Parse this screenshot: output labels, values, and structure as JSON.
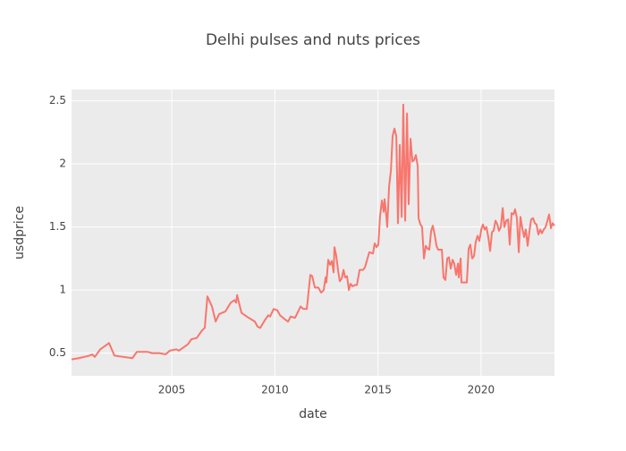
{
  "chart_data": {
    "type": "line",
    "title": "Delhi pulses and nuts prices",
    "x_label": "date",
    "y_label": "usdprice",
    "xlim": [
      2000.14,
      2023.56
    ],
    "xticks": [
      2005,
      2010,
      2015,
      2020
    ],
    "ylim": [
      0.32,
      2.59
    ],
    "yticks": [
      0.5,
      1,
      1.5,
      2,
      2.5
    ],
    "grid": true,
    "series": [
      {
        "name": "usdprice",
        "color": "#F8766D",
        "x": [
          2000.14,
          2000.49,
          2001.01,
          2001.14,
          2001.27,
          2001.53,
          2001.79,
          2001.96,
          2002.22,
          2003.09,
          2003.31,
          2003.83,
          2004.05,
          2004.39,
          2004.7,
          2004.91,
          2005.22,
          2005.35,
          2005.78,
          2005.95,
          2006.21,
          2006.47,
          2006.6,
          2006.73,
          2006.95,
          2007.13,
          2007.3,
          2007.6,
          2007.86,
          2008.04,
          2008.12,
          2008.17,
          2008.38,
          2008.73,
          2009.03,
          2009.16,
          2009.29,
          2009.51,
          2009.68,
          2009.77,
          2009.94,
          2010.12,
          2010.25,
          2010.55,
          2010.64,
          2010.77,
          2010.98,
          2011.25,
          2011.38,
          2011.55,
          2011.72,
          2011.81,
          2011.94,
          2012.11,
          2012.24,
          2012.37,
          2012.46,
          2012.5,
          2012.59,
          2012.68,
          2012.76,
          2012.85,
          2012.89,
          2012.98,
          2013.07,
          2013.15,
          2013.24,
          2013.33,
          2013.41,
          2013.5,
          2013.59,
          2013.67,
          2013.76,
          2013.89,
          2013.98,
          2014.11,
          2014.28,
          2014.37,
          2014.58,
          2014.76,
          2014.84,
          2014.93,
          2015.02,
          2015.1,
          2015.19,
          2015.28,
          2015.32,
          2015.37,
          2015.45,
          2015.54,
          2015.63,
          2015.71,
          2015.8,
          2015.89,
          2015.97,
          2016.06,
          2016.15,
          2016.23,
          2016.32,
          2016.41,
          2016.49,
          2016.58,
          2016.67,
          2016.75,
          2016.84,
          2016.93,
          2016.97,
          2017.06,
          2017.14,
          2017.23,
          2017.32,
          2017.4,
          2017.49,
          2017.58,
          2017.66,
          2017.75,
          2017.84,
          2017.92,
          2018.1,
          2018.18,
          2018.27,
          2018.36,
          2018.44,
          2018.53,
          2018.62,
          2018.7,
          2018.79,
          2018.88,
          2018.92,
          2019.01,
          2019.05,
          2019.14,
          2019.31,
          2019.4,
          2019.48,
          2019.57,
          2019.66,
          2019.74,
          2019.83,
          2019.92,
          2020.01,
          2020.09,
          2020.18,
          2020.26,
          2020.35,
          2020.44,
          2020.53,
          2020.61,
          2020.7,
          2020.79,
          2020.87,
          2020.96,
          2021.05,
          2021.13,
          2021.22,
          2021.31,
          2021.39,
          2021.48,
          2021.57,
          2021.65,
          2021.74,
          2021.83,
          2021.91,
          2022.0,
          2022.09,
          2022.17,
          2022.26,
          2022.35,
          2022.43,
          2022.52,
          2022.61,
          2022.69,
          2022.78,
          2022.87,
          2022.95,
          2023.04,
          2023.13,
          2023.22,
          2023.3,
          2023.39,
          2023.47,
          2023.56
        ],
        "values": [
          0.45,
          0.46,
          0.48,
          0.49,
          0.47,
          0.53,
          0.56,
          0.58,
          0.48,
          0.46,
          0.51,
          0.51,
          0.5,
          0.5,
          0.49,
          0.52,
          0.53,
          0.52,
          0.57,
          0.61,
          0.62,
          0.68,
          0.7,
          0.95,
          0.87,
          0.75,
          0.81,
          0.83,
          0.9,
          0.92,
          0.9,
          0.96,
          0.82,
          0.78,
          0.75,
          0.71,
          0.7,
          0.76,
          0.8,
          0.79,
          0.85,
          0.84,
          0.8,
          0.76,
          0.75,
          0.79,
          0.78,
          0.87,
          0.85,
          0.85,
          1.12,
          1.11,
          1.02,
          1.02,
          0.98,
          1.0,
          1.1,
          1.06,
          1.24,
          1.2,
          1.23,
          1.14,
          1.34,
          1.27,
          1.15,
          1.07,
          1.09,
          1.16,
          1.1,
          1.11,
          1.0,
          1.05,
          1.03,
          1.04,
          1.04,
          1.16,
          1.16,
          1.18,
          1.3,
          1.29,
          1.37,
          1.34,
          1.36,
          1.58,
          1.71,
          1.62,
          1.72,
          1.65,
          1.5,
          1.82,
          1.95,
          2.22,
          2.28,
          2.22,
          1.53,
          2.15,
          1.58,
          2.47,
          1.55,
          2.4,
          1.68,
          2.2,
          2.02,
          2.03,
          2.07,
          1.98,
          1.57,
          1.52,
          1.5,
          1.25,
          1.35,
          1.33,
          1.32,
          1.47,
          1.51,
          1.44,
          1.35,
          1.32,
          1.32,
          1.1,
          1.08,
          1.25,
          1.26,
          1.17,
          1.24,
          1.21,
          1.12,
          1.21,
          1.1,
          1.25,
          1.06,
          1.06,
          1.06,
          1.33,
          1.36,
          1.25,
          1.27,
          1.38,
          1.43,
          1.39,
          1.48,
          1.52,
          1.48,
          1.5,
          1.42,
          1.31,
          1.46,
          1.47,
          1.55,
          1.52,
          1.47,
          1.5,
          1.65,
          1.5,
          1.55,
          1.56,
          1.36,
          1.61,
          1.6,
          1.64,
          1.57,
          1.3,
          1.58,
          1.49,
          1.42,
          1.48,
          1.35,
          1.47,
          1.56,
          1.57,
          1.53,
          1.52,
          1.44,
          1.48,
          1.45,
          1.48,
          1.5,
          1.55,
          1.6,
          1.49,
          1.53,
          1.51
        ]
      }
    ]
  }
}
